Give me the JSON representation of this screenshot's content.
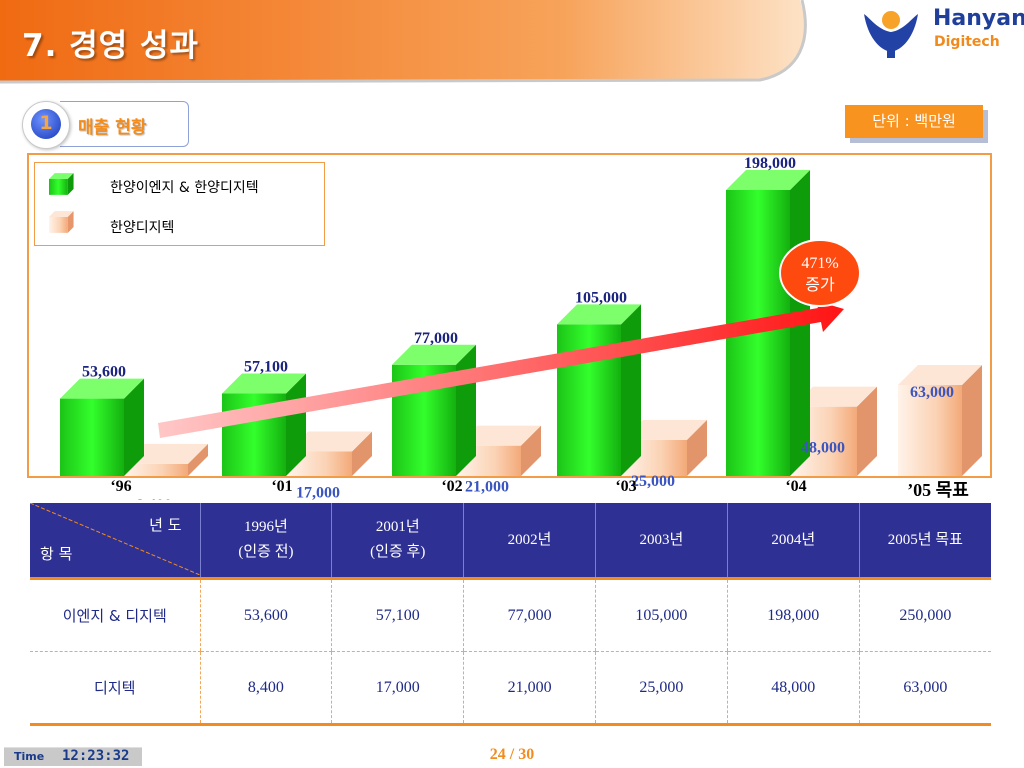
{
  "header": {
    "title": "7. 경영 성과",
    "logo_name": "Hanyang",
    "logo_sub": "Digitech"
  },
  "section": {
    "number": "1",
    "title": "매출 현황"
  },
  "unit_label": "단위 : 백만원",
  "annotation": {
    "growth_line1": "471%",
    "growth_line2": "증가"
  },
  "colors": {
    "header_orange": "#f27a1f",
    "series_green": "#22c21c",
    "series_peach": "#f7b68a",
    "table_header": "#2f3093",
    "accent": "#f28c1e",
    "arrow_red": "#ff2a2a",
    "value_green": "#1a237e",
    "value_peach": "#3a55c0"
  },
  "chart_data": {
    "type": "bar",
    "categories": [
      "‘96",
      "‘01",
      "‘02",
      "‘03",
      "‘04",
      "’05 목표"
    ],
    "series": [
      {
        "name": "한양이엔지 & 한양디지텍",
        "values": [
          53600,
          57100,
          77000,
          105000,
          198000,
          null
        ],
        "labels": [
          "53,600",
          "57,100",
          "77,000",
          "105,000",
          "198,000",
          ""
        ]
      },
      {
        "name": "한양디지텍",
        "values": [
          8400,
          17000,
          21000,
          25000,
          48000,
          63000
        ],
        "labels": [
          "8,400",
          "17,000",
          "21,000",
          "25,000",
          "48,000",
          "63,000"
        ]
      }
    ],
    "legend_position": "top-left",
    "grid": false
  },
  "table": {
    "corner_top": "년 도",
    "corner_bottom": "항 목",
    "headers": [
      {
        "line1": "1996년",
        "line2": "(인증 전)"
      },
      {
        "line1": "2001년",
        "line2": "(인증 후)"
      },
      {
        "line1": "2002년",
        "line2": ""
      },
      {
        "line1": "2003년",
        "line2": ""
      },
      {
        "line1": "2004년",
        "line2": ""
      },
      {
        "line1": "2005년 목표",
        "line2": ""
      }
    ],
    "rows": [
      {
        "label": "이엔지 & 디지텍",
        "values": [
          "53,600",
          "57,100",
          "77,000",
          "105,000",
          "198,000",
          "250,000"
        ]
      },
      {
        "label": "디지텍",
        "values": [
          "8,400",
          "17,000",
          "21,000",
          "25,000",
          "48,000",
          "63,000"
        ]
      }
    ]
  },
  "footer": {
    "time_label": "Time",
    "time_value": "12:23:32",
    "page": "24 / 30"
  }
}
